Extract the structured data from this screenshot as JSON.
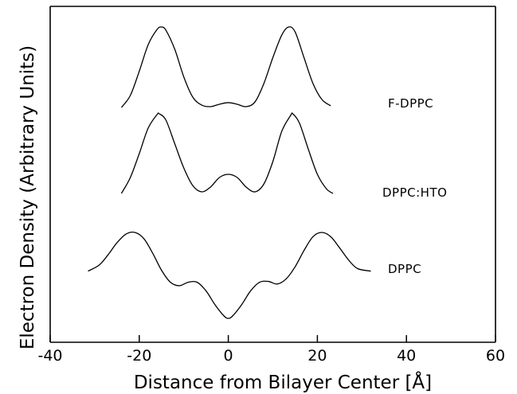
{
  "chart_data": {
    "type": "line",
    "title": "",
    "xlabel": "Distance from Bilayer Center [Å]",
    "ylabel": "Electron Density  (Arbitrary Units)",
    "xlim": [
      -40,
      60
    ],
    "xticks": [
      -40,
      -20,
      0,
      20,
      40,
      60
    ],
    "y_units": "arbitrary",
    "grid": false,
    "legend": "series labels placed to the right of each curve",
    "series": [
      {
        "name": "F-DPPC",
        "offset": 2.0,
        "x": [
          -24,
          -22,
          -20,
          -18,
          -16,
          -15,
          -14,
          -12,
          -10,
          -8,
          -6,
          -4,
          -2,
          0,
          2,
          4,
          6,
          8,
          10,
          12,
          13.5,
          15,
          17,
          19,
          21,
          23
        ],
        "y": [
          0.0,
          0.15,
          0.45,
          0.78,
          0.97,
          1.0,
          0.96,
          0.72,
          0.38,
          0.13,
          0.03,
          0.01,
          0.04,
          0.06,
          0.04,
          0.01,
          0.07,
          0.3,
          0.62,
          0.9,
          1.0,
          0.94,
          0.62,
          0.3,
          0.1,
          0.02
        ]
      },
      {
        "name": "DPPC:HTO",
        "offset": 1.0,
        "x": [
          -24,
          -22,
          -20,
          -18,
          -16,
          -15.5,
          -14,
          -12,
          -10,
          -8,
          -6,
          -4,
          -2,
          0,
          2,
          4,
          6,
          8,
          10,
          12,
          14,
          14.5,
          16,
          18,
          20,
          22,
          23.5
        ],
        "y": [
          0.0,
          0.2,
          0.5,
          0.82,
          0.99,
          1.0,
          0.92,
          0.62,
          0.32,
          0.1,
          0.02,
          0.08,
          0.2,
          0.24,
          0.2,
          0.08,
          0.02,
          0.12,
          0.4,
          0.78,
          0.98,
          1.0,
          0.88,
          0.55,
          0.24,
          0.06,
          0.0
        ]
      },
      {
        "name": "DPPC",
        "offset": 0.0,
        "x": [
          -31.5,
          -29,
          -27,
          -25,
          -23,
          -21,
          -19,
          -17,
          -15,
          -13,
          -11,
          -9,
          -7,
          -5,
          -3,
          -1,
          0,
          1,
          3,
          5,
          7,
          9,
          11,
          13,
          15,
          17,
          19,
          21,
          23,
          25,
          27,
          29,
          32
        ],
        "y": [
          0.55,
          0.62,
          0.74,
          0.88,
          0.98,
          1.0,
          0.93,
          0.76,
          0.56,
          0.42,
          0.38,
          0.42,
          0.42,
          0.32,
          0.16,
          0.03,
          0.0,
          0.03,
          0.16,
          0.32,
          0.42,
          0.43,
          0.4,
          0.46,
          0.6,
          0.79,
          0.95,
          1.0,
          0.95,
          0.82,
          0.68,
          0.58,
          0.55
        ]
      }
    ]
  }
}
